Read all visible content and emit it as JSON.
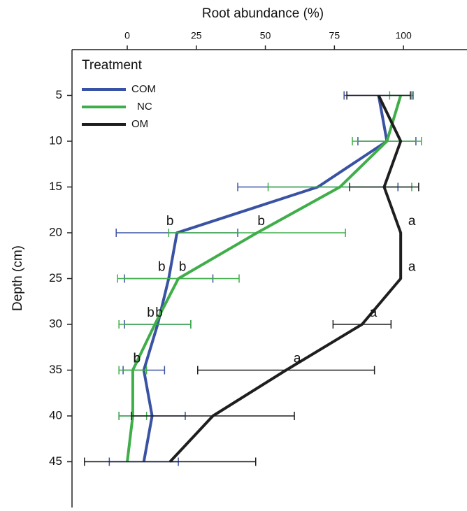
{
  "chart_data": {
    "type": "line",
    "x_label": "Root abundance (%)",
    "y_label": "Depth (cm)",
    "legend_title": "Treatment",
    "legend": "top-left",
    "orientation": "horizontal",
    "xlim": [
      -20,
      123
    ],
    "xticks": [
      0,
      25,
      50,
      75,
      100
    ],
    "ylim": [
      50,
      0
    ],
    "yticks": [
      5,
      10,
      15,
      20,
      25,
      30,
      35,
      40,
      45
    ],
    "categories": [
      5,
      10,
      15,
      20,
      25,
      30,
      35,
      40,
      45
    ],
    "series": [
      {
        "name": "COM",
        "color": "#3a52a3",
        "values": [
          91,
          94,
          69,
          18,
          15,
          11,
          6,
          9,
          6
        ],
        "errors": [
          12.5,
          10.5,
          29,
          22,
          16,
          12,
          7.5,
          12,
          12.5
        ],
        "letters": [
          null,
          null,
          null,
          "b",
          "b",
          "b",
          "b",
          null,
          null
        ]
      },
      {
        "name": "NC",
        "color": "#3fae49",
        "values": [
          99,
          94,
          77,
          47,
          18.5,
          10,
          2,
          2,
          0
        ],
        "errors": [
          4,
          12.5,
          26,
          32,
          22,
          13,
          5,
          5,
          null
        ],
        "letters": [
          null,
          null,
          null,
          "b",
          "b",
          "b",
          "b",
          null,
          null
        ]
      },
      {
        "name": "OM",
        "color": "#1e1e1e",
        "values": [
          91,
          99,
          93,
          99,
          99,
          85,
          57.5,
          31,
          15.5
        ],
        "errors": [
          11.5,
          null,
          12.5,
          null,
          null,
          10.5,
          32,
          29.5,
          31
        ],
        "letters": [
          null,
          null,
          null,
          "a",
          "a",
          "a",
          "a",
          null,
          null
        ]
      }
    ]
  }
}
